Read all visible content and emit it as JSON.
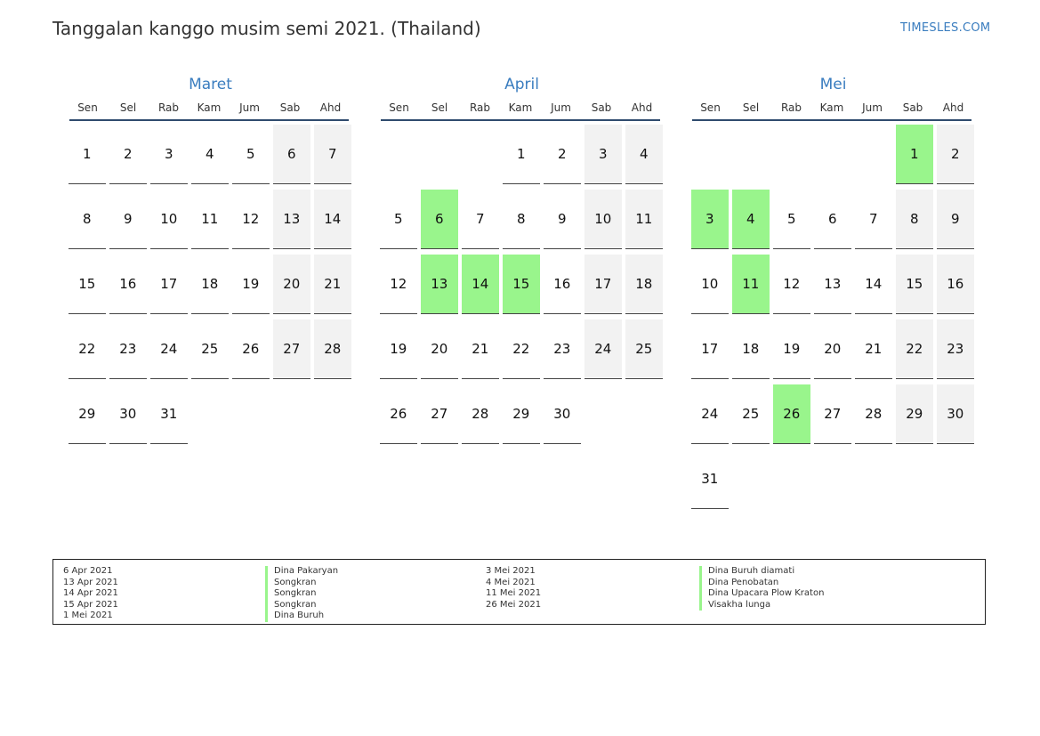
{
  "header": {
    "title": "Tanggalan kanggo musim semi 2021. (Thailand)",
    "brand": "TIMESLES.COM"
  },
  "weekday_labels": [
    "Sen",
    "Sel",
    "Rab",
    "Kam",
    "Jum",
    "Sab",
    "Ahd"
  ],
  "months": [
    {
      "name": "Maret",
      "first_weekday": 0,
      "days": 31,
      "holidays": []
    },
    {
      "name": "April",
      "first_weekday": 3,
      "days": 30,
      "holidays": [
        6,
        13,
        14,
        15
      ]
    },
    {
      "name": "Mei",
      "first_weekday": 5,
      "days": 31,
      "holidays": [
        1,
        3,
        4,
        11,
        26
      ]
    }
  ],
  "legend": {
    "left_dates": [
      "6 Apr 2021",
      "13 Apr 2021",
      "14 Apr 2021",
      "15 Apr 2021",
      "1 Mei 2021"
    ],
    "left_names": [
      "Dina Pakaryan",
      "Songkran",
      "Songkran",
      "Songkran",
      "Dina Buruh"
    ],
    "right_dates": [
      "3 Mei 2021",
      "4 Mei 2021",
      "11 Mei 2021",
      "26 Mei 2021"
    ],
    "right_names": [
      "Dina Buruh diamati",
      "Dina Penobatan",
      "Dina Upacara Plow Kraton",
      "Visakha lunga"
    ]
  },
  "colors": {
    "accent": "#3a7dbf",
    "holiday": "#99f58c",
    "weekend": "#f2f2f2"
  }
}
